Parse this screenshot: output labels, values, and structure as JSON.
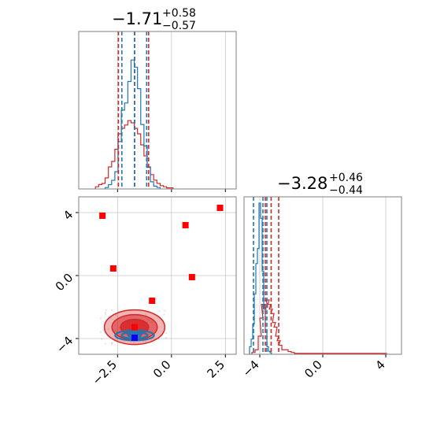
{
  "chart_data": {
    "type": "corner",
    "series_colors": {
      "blue": "#1f77b4",
      "red": "#d62728",
      "blue_marker": "#0000ff",
      "red_marker": "#ff0000"
    },
    "grid": true,
    "params": [
      {
        "title_main": "−1.71",
        "title_sup": "+0.58",
        "title_sub": "−0.57"
      },
      {
        "title_main": "−3.28",
        "title_sup": "+0.46",
        "title_sub": "−0.44"
      }
    ],
    "panels": {
      "hist_x": {
        "xlim": [
          -4.3,
          3.0
        ],
        "xticks": [
          -2.5,
          0.0,
          2.5
        ],
        "quantiles_blue": [
          -2.3,
          -1.71,
          -1.15
        ],
        "quantiles_red": [
          -2.46,
          -1.71,
          -1.06
        ],
        "hist_blue": {
          "x": [
            -3.0,
            -2.85,
            -2.7,
            -2.55,
            -2.4,
            -2.25,
            -2.1,
            -1.95,
            -1.8,
            -1.65,
            -1.5,
            -1.35,
            -1.2,
            -1.05,
            -0.9,
            -0.75,
            -0.6
          ],
          "y": [
            0.01,
            0.03,
            0.06,
            0.12,
            0.33,
            0.55,
            0.6,
            0.75,
            0.9,
            0.85,
            0.7,
            0.45,
            0.3,
            0.15,
            0.05,
            0.02,
            0.01
          ]
        },
        "hist_red": {
          "x": [
            -3.45,
            -3.3,
            -3.15,
            -3.0,
            -2.85,
            -2.7,
            -2.55,
            -2.4,
            -2.25,
            -2.1,
            -1.95,
            -1.8,
            -1.65,
            -1.5,
            -1.35,
            -1.2,
            -1.05,
            -0.9,
            -0.75,
            -0.6,
            -0.45,
            -0.3,
            -0.15,
            0.0
          ],
          "y": [
            0.02,
            0.04,
            0.05,
            0.1,
            0.2,
            0.25,
            0.36,
            0.5,
            0.55,
            0.58,
            0.62,
            0.6,
            0.55,
            0.5,
            0.4,
            0.3,
            0.2,
            0.13,
            0.08,
            0.05,
            0.03,
            0.02,
            0.01,
            0.01
          ]
        }
      },
      "hist_y": {
        "xlim": [
          -5.0,
          5.0
        ],
        "xticks": [
          -4,
          0,
          4
        ],
        "quantiles_blue": [
          -4.4,
          -3.8,
          -3.55
        ],
        "quantiles_red": [
          -3.65,
          -3.28,
          -2.8
        ],
        "hist_blue": {
          "x": [
            -4.6,
            -4.5,
            -4.4,
            -4.3,
            -4.2,
            -4.1,
            -4.0,
            -3.9,
            -3.8,
            -3.7,
            -3.6,
            -3.5,
            -3.4,
            -3.3
          ],
          "y": [
            0.05,
            0.1,
            0.2,
            0.4,
            0.6,
            0.7,
            1.0,
            0.9,
            0.55,
            0.3,
            0.15,
            0.05,
            0.02,
            0.01
          ]
        },
        "hist_red": {
          "x": [
            -4.4,
            -4.2,
            -4.0,
            -3.9,
            -3.8,
            -3.7,
            -3.6,
            -3.5,
            -3.4,
            -3.3,
            -3.2,
            -3.1,
            -3.0,
            -2.9,
            -2.8,
            -2.7,
            -2.5,
            -2.3,
            -2.1,
            -1.9,
            -1.7,
            -1.5,
            3.9,
            4.0
          ],
          "y": [
            0.02,
            0.05,
            0.2,
            0.4,
            0.55,
            0.5,
            0.52,
            0.6,
            0.55,
            0.5,
            0.45,
            0.35,
            0.3,
            0.2,
            0.15,
            0.1,
            0.05,
            0.05,
            0.03,
            0.02,
            0.01,
            0.01,
            0.01,
            0.0
          ]
        }
      },
      "scatter_2d": {
        "xlim": [
          -4.3,
          3.0
        ],
        "ylim": [
          -5.0,
          5.0
        ],
        "xticks": [
          -2.5,
          0.0,
          2.5
        ],
        "yticks": [
          -4,
          0,
          4
        ],
        "blue_center": [
          -1.71,
          -3.8
        ],
        "red_center": [
          -1.71,
          -3.28
        ],
        "red_points": [
          {
            "x": -3.2,
            "y": 3.8
          },
          {
            "x": 2.25,
            "y": 4.3
          },
          {
            "x": 0.65,
            "y": 3.2
          },
          {
            "x": -2.7,
            "y": 0.45
          },
          {
            "x": 0.95,
            "y": -0.1
          },
          {
            "x": -0.9,
            "y": -1.6
          },
          {
            "x": -1.71,
            "y": -3.28
          }
        ],
        "blue_points": [
          {
            "x": -1.71,
            "y": -3.95
          }
        ]
      }
    }
  }
}
